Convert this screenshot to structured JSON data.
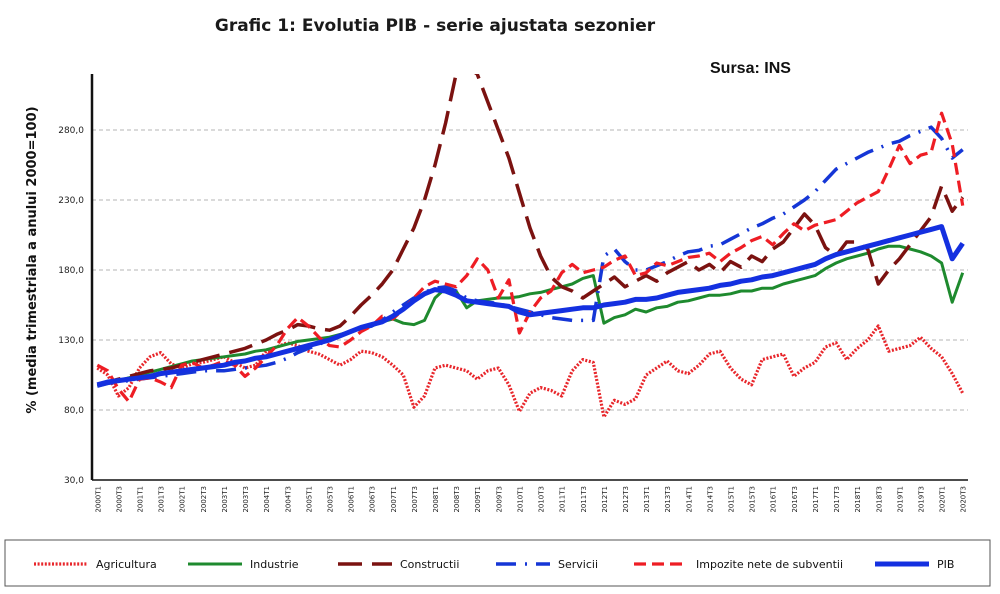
{
  "chart_data": {
    "type": "line",
    "title": "Grafic 1: Evolutia PIB - serie ajustata sezonier",
    "source": "Sursa: INS",
    "ylabel": "% (media trimestriala a anului 2000=100)",
    "ylim": [
      30,
      320
    ],
    "yticks": [
      30,
      80,
      130,
      180,
      230,
      280
    ],
    "ytick_labels": [
      "30,0",
      "80,0",
      "130,0",
      "180,0",
      "230,0",
      "280,0"
    ],
    "grid": true,
    "legend": "bottom",
    "x": [
      "2000T1",
      "2000T2",
      "2000T3",
      "2000T4",
      "2001T1",
      "2001T2",
      "2001T3",
      "2001T4",
      "2002T1",
      "2002T2",
      "2002T3",
      "2002T4",
      "2003T1",
      "2003T2",
      "2003T3",
      "2003T4",
      "2004T1",
      "2004T2",
      "2004T3",
      "2004T4",
      "2005T1",
      "2005T2",
      "2005T3",
      "2005T4",
      "2006T1",
      "2006T2",
      "2006T3",
      "2006T4",
      "2007T1",
      "2007T2",
      "2007T3",
      "2007T4",
      "2008T1",
      "2008T2",
      "2008T3",
      "2008T4",
      "2009T1",
      "2009T2",
      "2009T3",
      "2009T4",
      "2010T1",
      "2010T2",
      "2010T3",
      "2010T4",
      "2011T1",
      "2011T2",
      "2011T3",
      "2011T4",
      "2012T1",
      "2012T2",
      "2012T3",
      "2012T4",
      "2013T1",
      "2013T2",
      "2013T3",
      "2013T4",
      "2014T1",
      "2014T2",
      "2014T3",
      "2014T4",
      "2015T1",
      "2015T2",
      "2015T3",
      "2015T4",
      "2016T1",
      "2016T2",
      "2016T3",
      "2016T4",
      "2017T1",
      "2017T2",
      "2017T3",
      "2017T4",
      "2018T1",
      "2018T2",
      "2018T3",
      "2018T4",
      "2019T1",
      "2019T2",
      "2019T3",
      "2019T4",
      "2020T1",
      "2020T2",
      "2020T3"
    ],
    "x_tick_labels": [
      "2000T1",
      "2000T3",
      "2001T1",
      "2001T3",
      "2002T1",
      "2002T3",
      "2003T1",
      "2003T3",
      "2004T1",
      "2004T3",
      "2005T1",
      "2005T3",
      "2006T1",
      "2006T3",
      "2007T1",
      "2007T3",
      "2008T1",
      "2008T3",
      "2009T1",
      "2009T3",
      "2010T1",
      "2010T3",
      "2011T1",
      "2011T3",
      "2012T1",
      "2012T3",
      "2013T1",
      "2013T3",
      "2014T1",
      "2014T3",
      "2015T1",
      "2015T3",
      "2016T1",
      "2016T3",
      "2017T1",
      "2017T3",
      "2018T1",
      "2018T3",
      "2019T1",
      "2019T3",
      "2020T1",
      "2020T3"
    ],
    "series": [
      {
        "name": "Agricultura",
        "color": "#e8262b",
        "style": "dotted",
        "values": [
          110,
          105,
          90,
          96,
          110,
          118,
          121,
          113,
          110,
          113,
          114,
          116,
          118,
          114,
          110,
          112,
          122,
          125,
          128,
          126,
          122,
          120,
          116,
          112,
          116,
          122,
          121,
          118,
          112,
          105,
          82,
          90,
          110,
          112,
          110,
          108,
          102,
          108,
          110,
          98,
          79,
          92,
          96,
          94,
          90,
          108,
          116,
          114,
          75,
          87,
          84,
          88,
          105,
          110,
          115,
          108,
          106,
          112,
          120,
          122,
          110,
          102,
          98,
          116,
          118,
          120,
          104,
          110,
          114,
          125,
          128,
          116,
          124,
          130,
          140,
          122,
          124,
          126,
          132,
          124,
          118,
          106,
          92
        ]
      },
      {
        "name": "Industrie",
        "color": "#1e8a2e",
        "style": "solid",
        "values": [
          97,
          99,
          101,
          103,
          105,
          107,
          109,
          111,
          113,
          115,
          116,
          117,
          118,
          119,
          120,
          122,
          123,
          125,
          127,
          129,
          130,
          131,
          132,
          134,
          136,
          138,
          140,
          143,
          145,
          142,
          141,
          144,
          160,
          167,
          165,
          153,
          158,
          159,
          160,
          160,
          161,
          163,
          164,
          166,
          168,
          170,
          174,
          176,
          142,
          146,
          148,
          152,
          150,
          153,
          154,
          157,
          158,
          160,
          162,
          162,
          163,
          165,
          165,
          167,
          167,
          170,
          172,
          174,
          176,
          181,
          185,
          188,
          190,
          192,
          195,
          197,
          197,
          195,
          193,
          190,
          185,
          157,
          178
        ]
      },
      {
        "name": "Constructii",
        "color": "#7b1210",
        "style": "longdash",
        "values": [
          98,
          100,
          102,
          104,
          106,
          108,
          109,
          110,
          112,
          114,
          116,
          118,
          120,
          122,
          124,
          127,
          130,
          134,
          137,
          141,
          140,
          138,
          137,
          140,
          147,
          155,
          162,
          170,
          180,
          195,
          210,
          230,
          255,
          285,
          320,
          325,
          320,
          300,
          280,
          260,
          235,
          210,
          190,
          175,
          168,
          165,
          160,
          165,
          170,
          175,
          168,
          172,
          176,
          172,
          178,
          182,
          186,
          180,
          184,
          178,
          186,
          182,
          190,
          186,
          195,
          200,
          210,
          220,
          212,
          196,
          190,
          200,
          200,
          195,
          170,
          180,
          188,
          198,
          208,
          218,
          240,
          222,
          232
        ]
      },
      {
        "name": "Servicii",
        "color": "#1536d6",
        "style": "dashdot",
        "values": [
          97,
          99,
          100,
          101,
          102,
          103,
          104,
          105,
          106,
          107,
          108,
          108,
          108,
          109,
          110,
          111,
          112,
          114,
          117,
          121,
          124,
          127,
          130,
          133,
          136,
          138,
          140,
          144,
          150,
          155,
          160,
          164,
          167,
          168,
          165,
          160,
          158,
          157,
          156,
          154,
          152,
          150,
          148,
          146,
          145,
          144,
          144,
          144,
          190,
          195,
          186,
          180,
          180,
          183,
          186,
          190,
          193,
          194,
          197,
          198,
          202,
          206,
          210,
          213,
          217,
          220,
          225,
          230,
          236,
          244,
          252,
          256,
          260,
          264,
          267,
          270,
          272,
          276,
          279,
          282,
          274,
          260,
          266
        ]
      },
      {
        "name": "Impozite nete de subventii",
        "color": "#ee1d24",
        "style": "shortdash",
        "values": [
          112,
          108,
          95,
          86,
          102,
          103,
          100,
          96,
          112,
          114,
          110,
          112,
          115,
          112,
          104,
          110,
          118,
          126,
          138,
          146,
          140,
          132,
          126,
          125,
          130,
          136,
          140,
          147,
          145,
          152,
          160,
          168,
          172,
          170,
          168,
          176,
          188,
          180,
          160,
          173,
          135,
          150,
          160,
          165,
          178,
          184,
          178,
          180,
          182,
          187,
          190,
          176,
          178,
          185,
          183,
          186,
          189,
          190,
          192,
          186,
          192,
          196,
          201,
          204,
          198,
          206,
          213,
          208,
          212,
          214,
          216,
          222,
          228,
          232,
          236,
          252,
          269,
          256,
          262,
          264,
          292,
          270,
          226
        ]
      },
      {
        "name": "PIB",
        "color": "#1430e0",
        "style": "solid-thick",
        "values": [
          98,
          100,
          101,
          102,
          103,
          104,
          106,
          107,
          108,
          109,
          110,
          111,
          112,
          114,
          115,
          117,
          118,
          120,
          122,
          124,
          126,
          128,
          130,
          133,
          136,
          139,
          141,
          143,
          147,
          152,
          158,
          163,
          166,
          165,
          162,
          158,
          157,
          156,
          155,
          154,
          150,
          148,
          149,
          150,
          151,
          152,
          153,
          153,
          155,
          156,
          157,
          159,
          159,
          160,
          162,
          164,
          165,
          166,
          167,
          169,
          170,
          172,
          173,
          175,
          176,
          178,
          180,
          182,
          184,
          188,
          191,
          193,
          195,
          197,
          199,
          201,
          203,
          205,
          207,
          209,
          211,
          188,
          199
        ]
      }
    ]
  }
}
